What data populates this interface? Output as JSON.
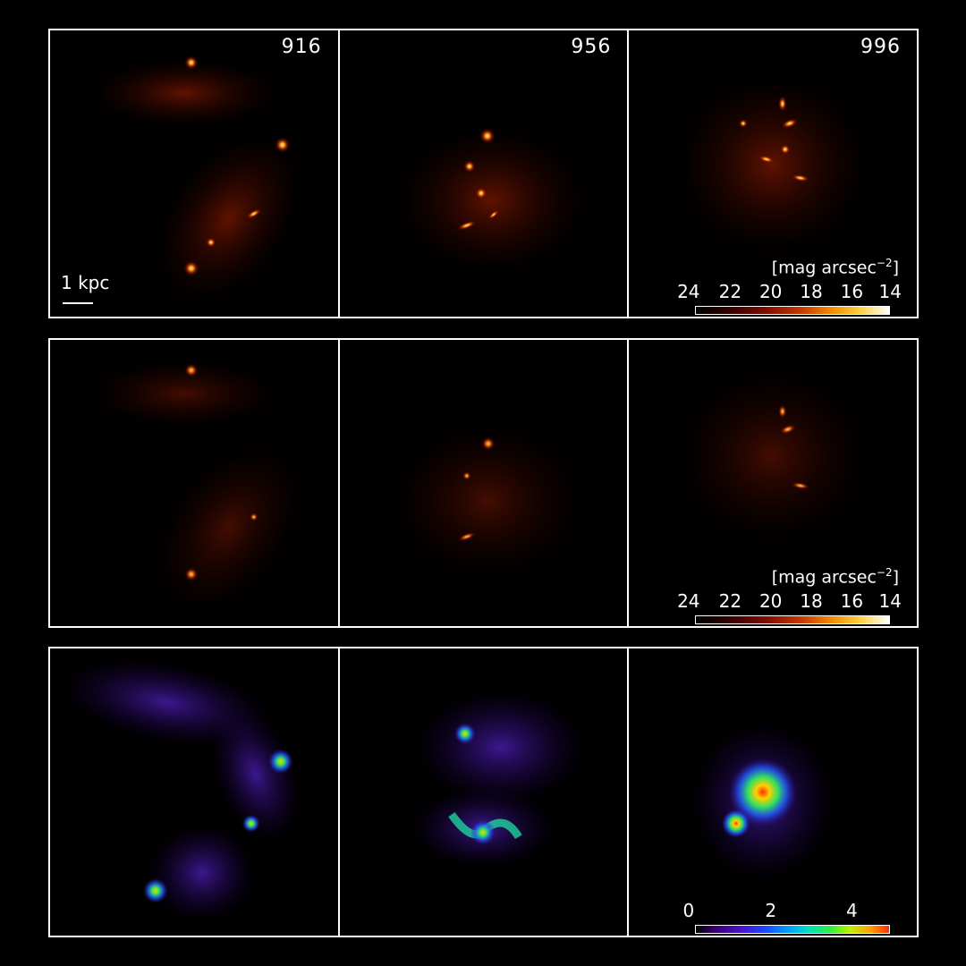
{
  "panels": {
    "snapshot_labels": [
      "916",
      "956",
      "996"
    ],
    "scale_bar_label": "1 kpc"
  },
  "colorbars": {
    "magnitude": {
      "unit_prefix": "[mag arcsec",
      "unit_exponent": "−2",
      "unit_suffix": "]",
      "ticks": [
        "24",
        "22",
        "20",
        "18",
        "16",
        "14"
      ]
    },
    "third_row": {
      "ticks": [
        "0",
        "2",
        "4"
      ]
    }
  },
  "colors": {
    "background": "#000000",
    "frame": "#ffffff",
    "glow_core": "#ffe070",
    "glow_mid": "#ff8a10",
    "glow_faint": "#a02000",
    "rain_low": "#4a10c0",
    "rain_high": "#ff3000"
  }
}
